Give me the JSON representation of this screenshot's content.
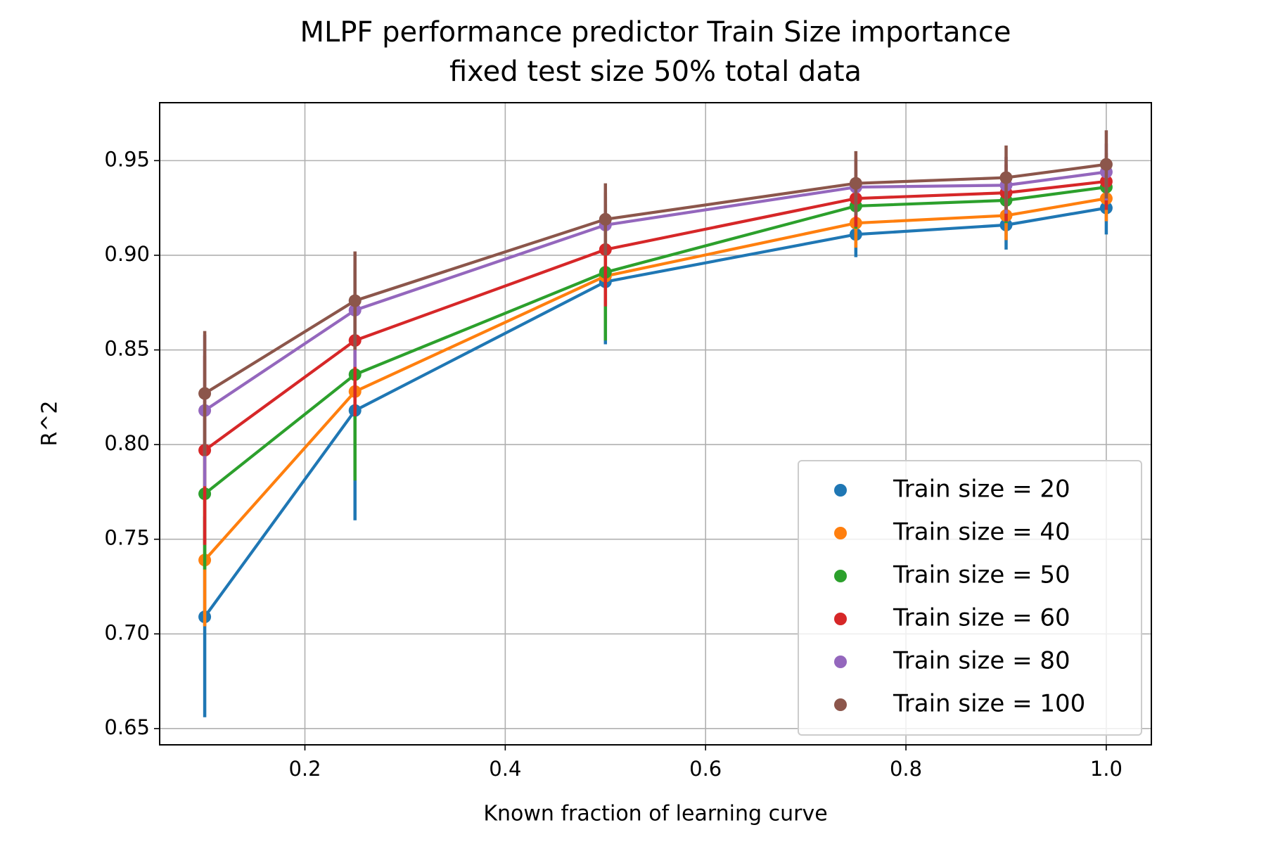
{
  "chart_data": {
    "type": "line",
    "title": "MLPF performance predictor Train Size importance",
    "subtitle": "fixed test size 50% total data",
    "x_label": "Known fraction of learning curve",
    "y_label": "R^2",
    "x": [
      0.1,
      0.25,
      0.5,
      0.75,
      0.9,
      1.0
    ],
    "xlim": [
      0.055,
      1.045
    ],
    "ylim": [
      0.6414,
      0.9806
    ],
    "xticks": [
      0.2,
      0.4,
      0.6,
      0.8,
      {
        "value": 1.0,
        "label": "1.0"
      }
    ],
    "yticks": [
      0.65,
      {
        "value": 0.7,
        "label": "0.70"
      },
      0.75,
      {
        "value": 0.8,
        "label": "0.80"
      },
      0.85,
      {
        "value": 0.9,
        "label": "0.90"
      },
      0.95
    ],
    "grid": true,
    "legend": "lower right",
    "series": [
      {
        "name": "Train size = 20",
        "color": "#1f77b4",
        "values": [
          0.709,
          0.818,
          0.886,
          0.911,
          0.916,
          0.925
        ],
        "errors": [
          0.053,
          0.058,
          0.033,
          0.012,
          0.013,
          0.014
        ]
      },
      {
        "name": "Train size = 40",
        "color": "#ff7f0e",
        "values": [
          0.739,
          0.828,
          0.889,
          0.917,
          0.921,
          0.93
        ],
        "errors": [
          0.035,
          0.045,
          0.025,
          0.013,
          0.013,
          0.012
        ]
      },
      {
        "name": "Train size = 50",
        "color": "#2ca02c",
        "values": [
          0.774,
          0.837,
          0.891,
          0.926,
          0.929,
          0.936
        ],
        "errors": [
          0.04,
          0.056,
          0.036,
          0.012,
          0.012,
          0.012
        ]
      },
      {
        "name": "Train size = 60",
        "color": "#d62728",
        "values": [
          0.797,
          0.855,
          0.903,
          0.93,
          0.933,
          0.939
        ],
        "errors": [
          0.05,
          0.04,
          0.03,
          0.015,
          0.015,
          0.015
        ]
      },
      {
        "name": "Train size = 80",
        "color": "#9467bd",
        "values": [
          0.818,
          0.871,
          0.916,
          0.936,
          0.937,
          0.944
        ],
        "errors": [
          0.04,
          0.03,
          0.015,
          0.015,
          0.015,
          0.015
        ]
      },
      {
        "name": "Train size = 100",
        "color": "#8c564b",
        "values": [
          0.827,
          0.876,
          0.919,
          0.938,
          0.941,
          0.948
        ],
        "errors": [
          0.033,
          0.026,
          0.019,
          0.017,
          0.017,
          0.018
        ]
      }
    ]
  }
}
